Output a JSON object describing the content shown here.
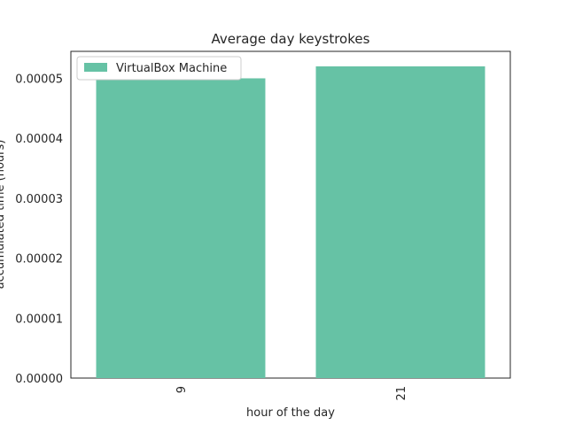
{
  "chart_data": {
    "type": "bar",
    "title": "Average day keystrokes",
    "xlabel": "hour of the day",
    "ylabel": "accumulated time (hours)",
    "categories": [
      "9",
      "21"
    ],
    "series": [
      {
        "name": "VirtualBox Machine",
        "values": [
          5e-05,
          5.2e-05
        ],
        "color": "#66c2a5"
      }
    ],
    "ylim": [
      0,
      5.45e-05
    ],
    "yticks": [
      0,
      1e-05,
      2e-05,
      3e-05,
      4e-05,
      5e-05
    ],
    "ytick_labels": [
      "0.00000",
      "0.00001",
      "0.00002",
      "0.00003",
      "0.00004",
      "0.00005"
    ],
    "xtick_rotation": "vertical",
    "grid": false,
    "legend_position": "upper-left"
  }
}
